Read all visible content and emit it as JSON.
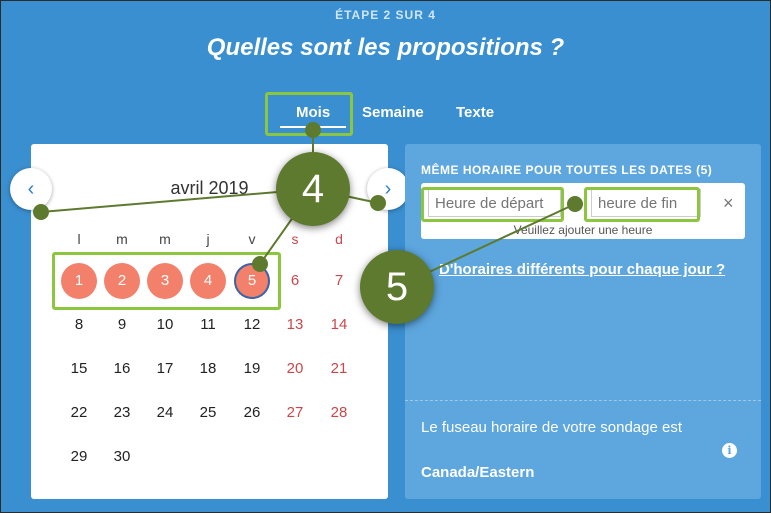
{
  "header": {
    "step": "ÉTAPE 2 SUR 4",
    "title": "Quelles sont les propositions ?"
  },
  "tabs": [
    {
      "label": "Mois",
      "active": true
    },
    {
      "label": "Semaine",
      "active": false
    },
    {
      "label": "Texte",
      "active": false
    }
  ],
  "calendar": {
    "month_label": "avril 2019",
    "prev_icon": "chevron-left-icon",
    "next_icon": "chevron-right-icon",
    "weekdays": [
      "l",
      "m",
      "m",
      "j",
      "v",
      "s",
      "d"
    ],
    "weeks": [
      [
        "1",
        "2",
        "3",
        "4",
        "5",
        "6",
        "7"
      ],
      [
        "8",
        "9",
        "10",
        "11",
        "12",
        "13",
        "14"
      ],
      [
        "15",
        "16",
        "17",
        "18",
        "19",
        "20",
        "21"
      ],
      [
        "22",
        "23",
        "24",
        "25",
        "26",
        "27",
        "28"
      ],
      [
        "29",
        "30"
      ]
    ],
    "selected_days": [
      "1",
      "2",
      "3",
      "4",
      "5"
    ],
    "today": "5"
  },
  "panel": {
    "heading": "MÊME HORAIRE POUR TOUTES LES DATES (5)",
    "start_placeholder": "Heure de départ",
    "end_placeholder": "heure de fin",
    "clear_label": "×",
    "hint": "Veuillez ajouter une heure",
    "different_link": "D'horaires différents pour chaque jour ?",
    "timezone_label": "Le fuseau horaire de votre sondage est",
    "timezone_value": "Canada/Eastern",
    "info_label": "i"
  },
  "callouts": [
    "4",
    "5"
  ],
  "colors": {
    "background": "#3a8fd0",
    "selected_day": "#f2806a",
    "weekend": "#c8484d",
    "highlight": "#8cc63f",
    "callout": "#5e7a2e"
  }
}
